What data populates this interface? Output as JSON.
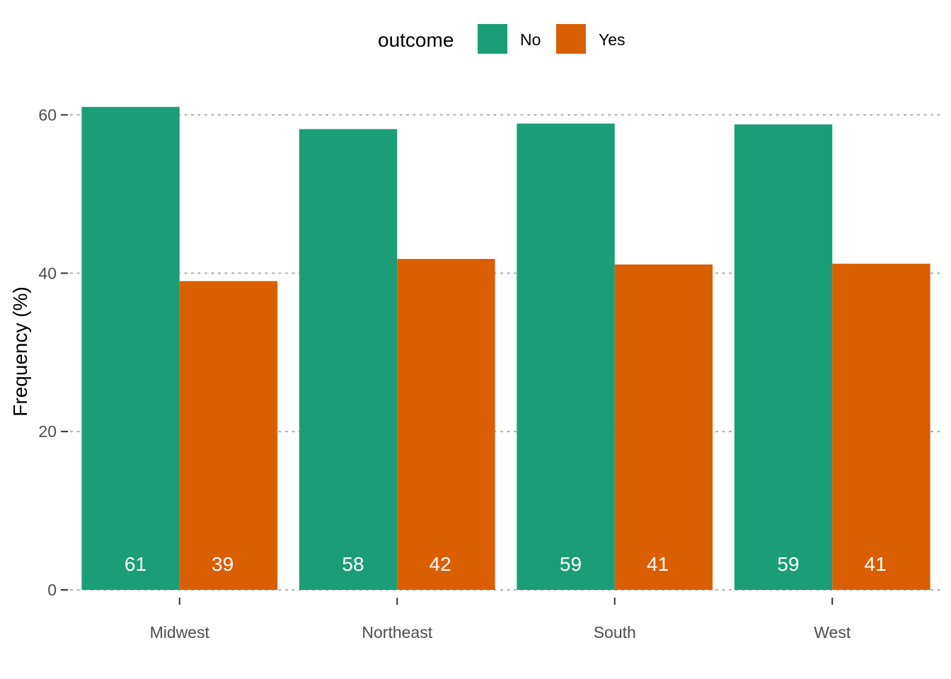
{
  "chart_data": {
    "type": "bar",
    "categories": [
      "Midwest",
      "Northeast",
      "South",
      "West"
    ],
    "series": [
      {
        "name": "No",
        "color": "#1B9E77",
        "values": [
          61,
          58.2,
          58.9,
          58.8
        ],
        "labels": [
          "61",
          "58",
          "59",
          "59"
        ]
      },
      {
        "name": "Yes",
        "color": "#D95F02",
        "values": [
          39,
          41.8,
          41.1,
          41.2
        ],
        "labels": [
          "39",
          "42",
          "41",
          "41"
        ]
      }
    ],
    "legend": {
      "title": "outcome",
      "position": "top"
    },
    "ylabel": "Frequency (%)",
    "xlabel": "",
    "ylim": [
      0,
      62
    ],
    "yticks": [
      0,
      20,
      40,
      60
    ],
    "grid": "horizontal dotted",
    "grid_color": "#b3b3b3"
  }
}
